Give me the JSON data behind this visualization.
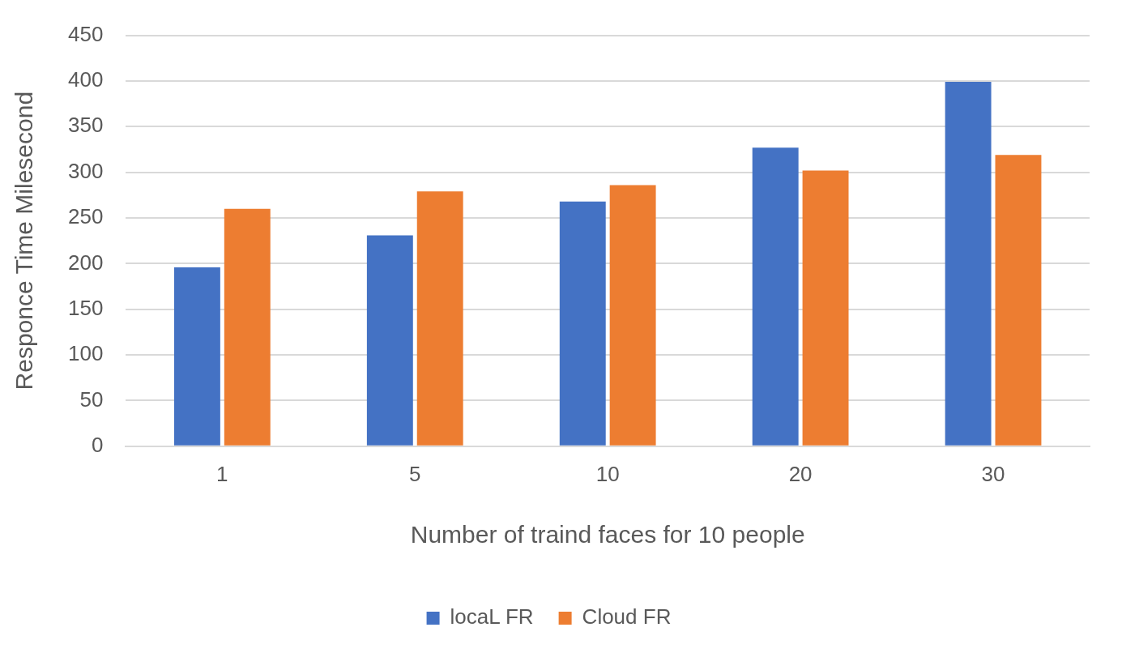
{
  "chart_data": {
    "type": "bar",
    "xlabel": "Number of traind faces for 10 people",
    "ylabel": "Responce Time Milesecond",
    "categories": [
      "1",
      "5",
      "10",
      "20",
      "30"
    ],
    "series": [
      {
        "name": "locaL FR",
        "color": "#4472c4",
        "values": [
          196,
          231,
          268,
          327,
          399
        ]
      },
      {
        "name": "Cloud FR",
        "color": "#ed7d31",
        "values": [
          260,
          279,
          286,
          302,
          319
        ]
      }
    ],
    "ylim": [
      0,
      450
    ],
    "yticks": [
      0,
      50,
      100,
      150,
      200,
      250,
      300,
      350,
      400,
      450
    ],
    "grid": "y",
    "legend": "bottom"
  }
}
